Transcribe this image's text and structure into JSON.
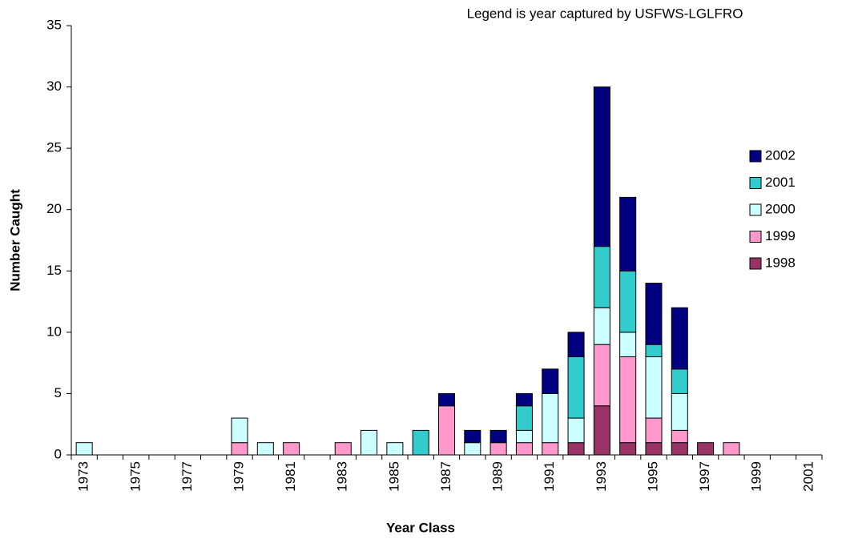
{
  "chart_data": {
    "type": "stacked_bar",
    "annotation": "Legend is year captured by USFWS-LGLFRO",
    "xlabel": "Year Class",
    "ylabel": "Number Caught",
    "categories": [
      "1973",
      null,
      "1975",
      null,
      "1977",
      null,
      "1979",
      null,
      "1981",
      null,
      "1983",
      null,
      "1985",
      null,
      "1987",
      null,
      "1989",
      null,
      "1991",
      null,
      "1993",
      null,
      "1995",
      null,
      "1997",
      null,
      "1999",
      null,
      "2001"
    ],
    "series": [
      {
        "name": "1998",
        "color": "#993366",
        "values": [
          0,
          0,
          0,
          0,
          0,
          0,
          0,
          0,
          0,
          0,
          0,
          0,
          0,
          0,
          0,
          0,
          0,
          0,
          0,
          1,
          4,
          1,
          1,
          1,
          1,
          0,
          0,
          0,
          0
        ]
      },
      {
        "name": "1999",
        "color": "#ff99cc",
        "values": [
          0,
          0,
          0,
          0,
          0,
          0,
          1,
          0,
          1,
          0,
          1,
          0,
          0,
          0,
          4,
          0,
          1,
          1,
          1,
          0,
          5,
          7,
          2,
          1,
          0,
          1,
          0,
          0,
          0
        ]
      },
      {
        "name": "2000",
        "color": "#ccffff",
        "values": [
          1,
          0,
          0,
          0,
          0,
          0,
          2,
          1,
          0,
          0,
          0,
          2,
          1,
          0,
          0,
          1,
          0,
          1,
          4,
          2,
          3,
          2,
          5,
          3,
          0,
          0,
          0,
          0,
          0
        ]
      },
      {
        "name": "2001",
        "color": "#33cccc",
        "values": [
          0,
          0,
          0,
          0,
          0,
          0,
          0,
          0,
          0,
          0,
          0,
          0,
          0,
          2,
          0,
          0,
          0,
          2,
          0,
          5,
          5,
          5,
          1,
          2,
          0,
          0,
          0,
          0,
          0
        ]
      },
      {
        "name": "2002",
        "color": "#000080",
        "values": [
          0,
          0,
          0,
          0,
          0,
          0,
          0,
          0,
          0,
          0,
          0,
          0,
          0,
          0,
          1,
          1,
          1,
          1,
          2,
          2,
          13,
          6,
          5,
          5,
          0,
          0,
          0,
          0,
          0
        ]
      }
    ],
    "ylim": [
      0,
      35
    ],
    "yticks": [
      0,
      5,
      10,
      15,
      20,
      25,
      30,
      35
    ],
    "legend": "right"
  }
}
